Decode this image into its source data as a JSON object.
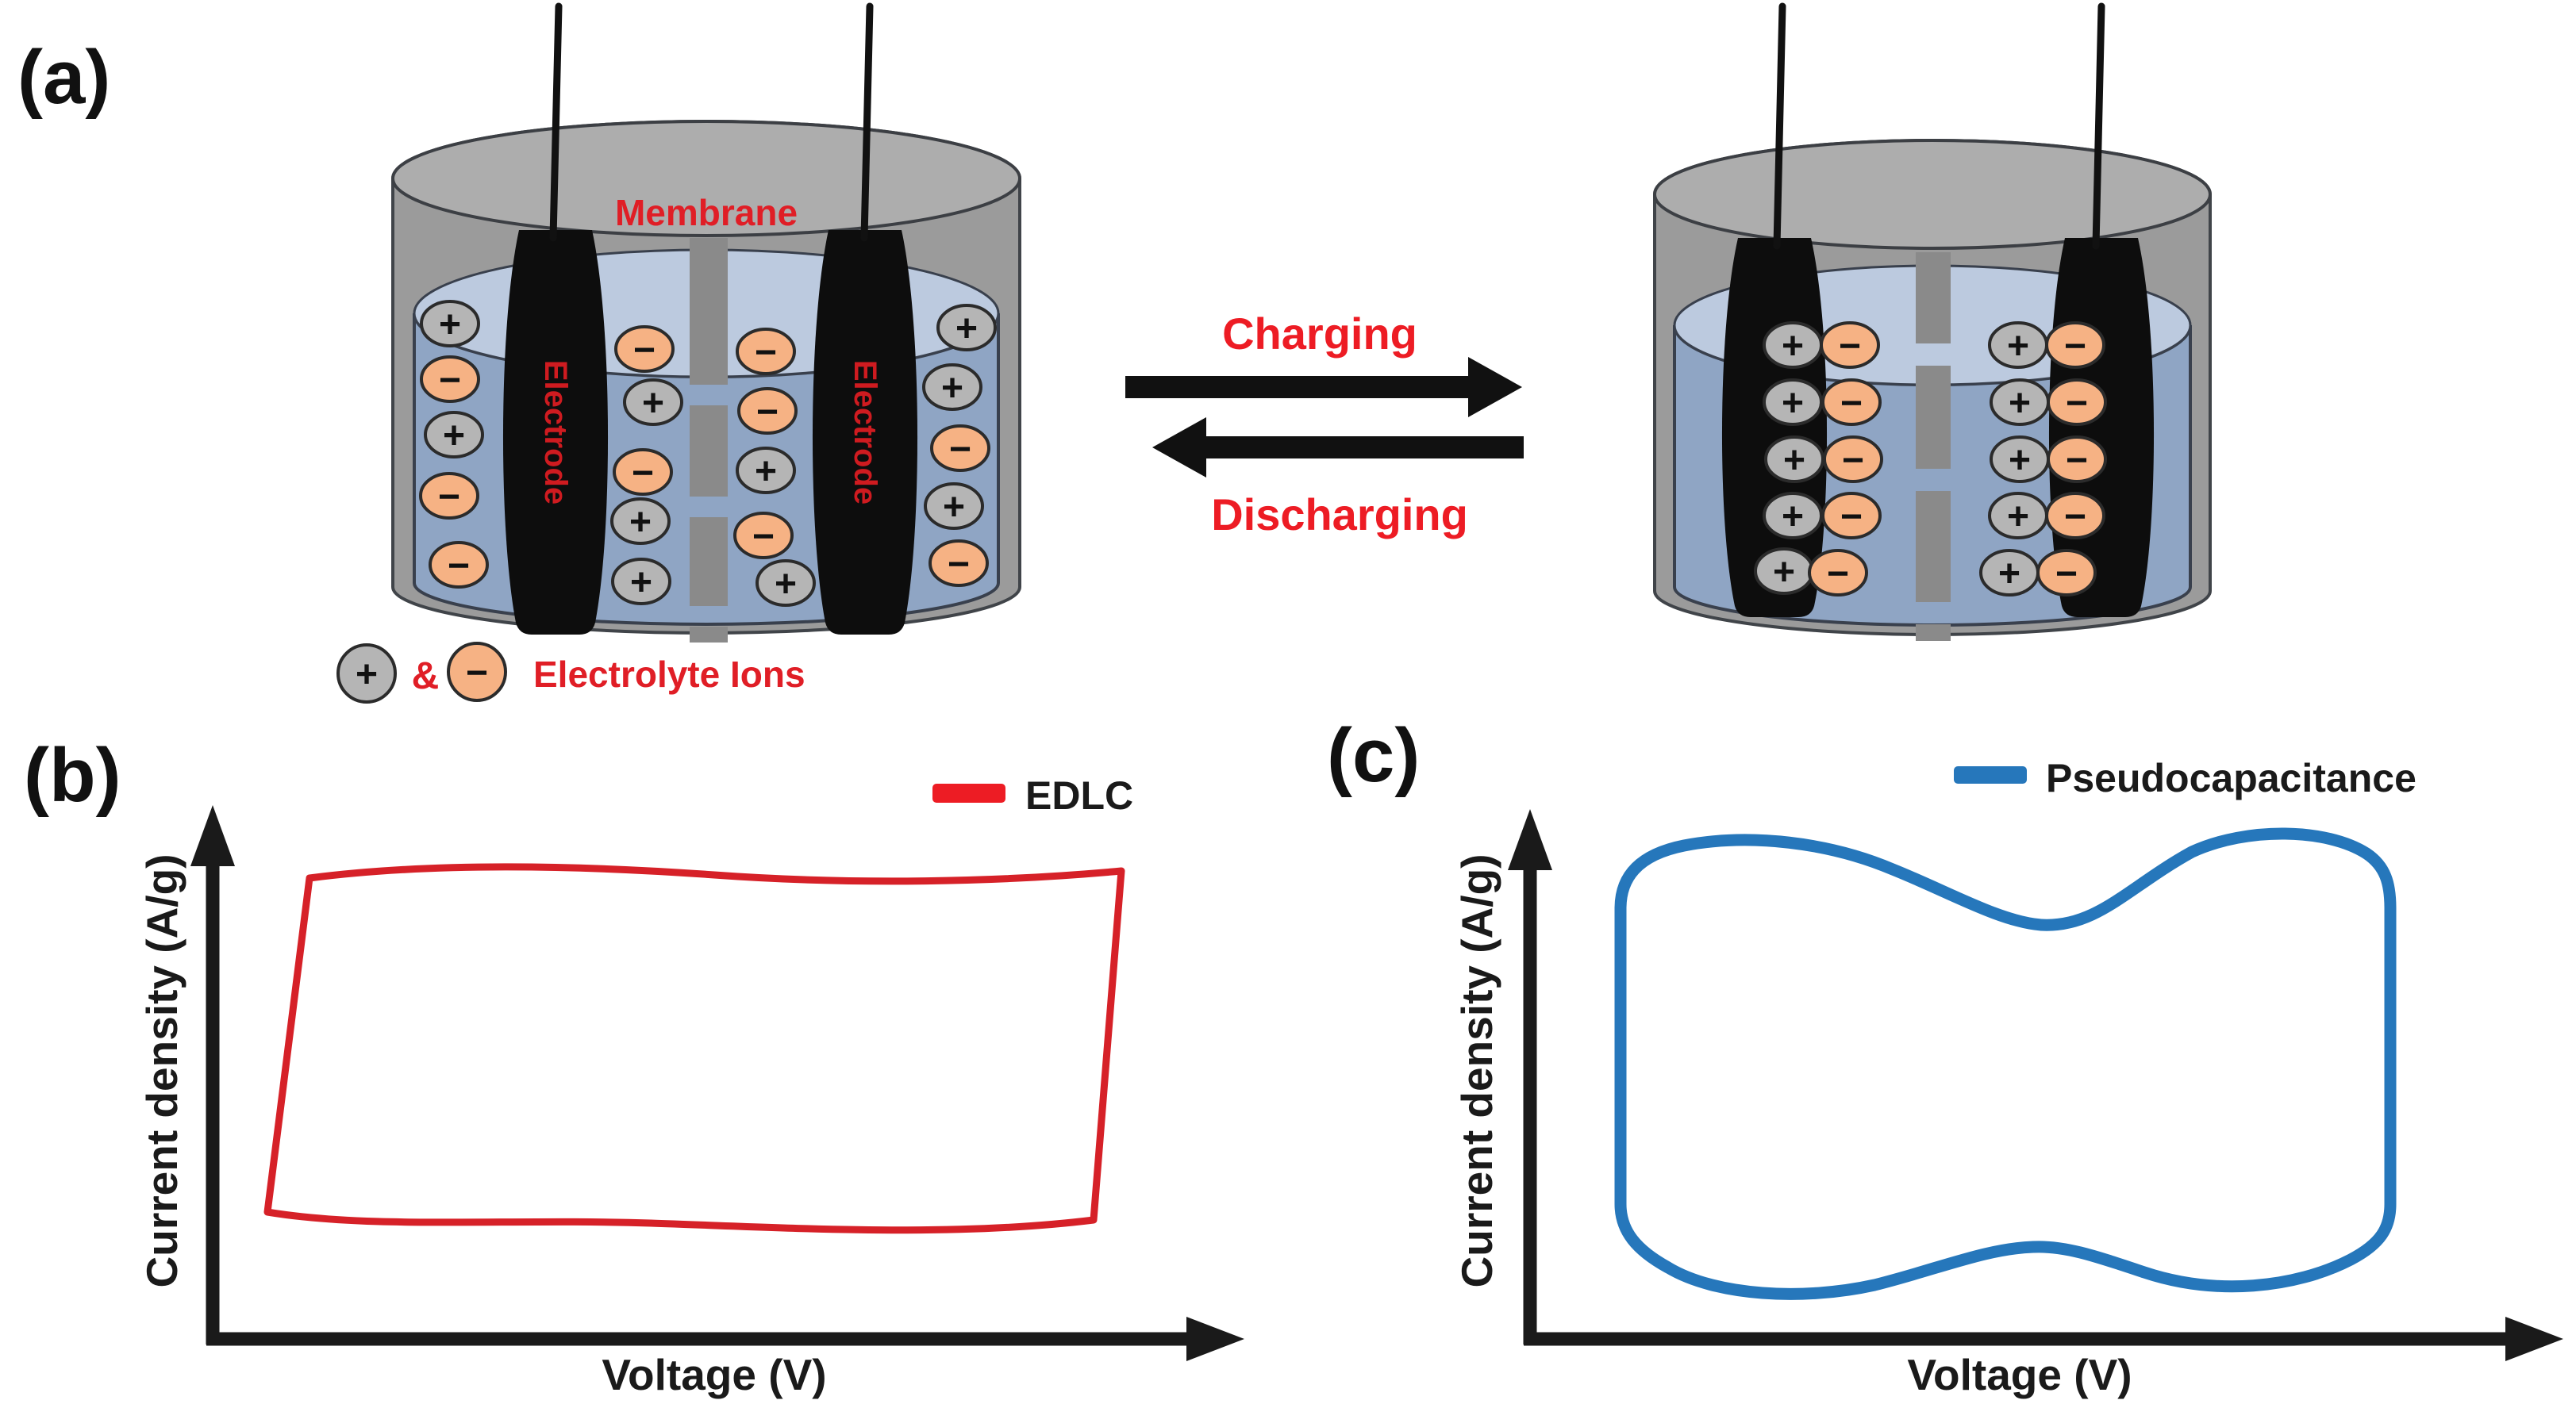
{
  "figure": {
    "panel_a": {
      "label": "(a)",
      "membrane_label": "Membrane",
      "electrode_label": "Electrode",
      "charging_label": "Charging",
      "discharging_label": "Discharging",
      "legend": {
        "plus_symbol": "+",
        "amp": "&",
        "minus_symbol": "−",
        "text": "Electrolyte Ions"
      },
      "symbols": {
        "p": "+",
        "m": "−"
      },
      "left_beaker_state": "discharged (ions dispersed in electrolyte)",
      "right_beaker_state": "charged (ion pairs adsorbed at both electrodes)",
      "left_beaker_ions": [
        [
          567,
          408,
          "p"
        ],
        [
          567,
          478,
          "m"
        ],
        [
          572,
          548,
          "p"
        ],
        [
          566,
          625,
          "m"
        ],
        [
          578,
          712,
          "m"
        ],
        [
          812,
          440,
          "m"
        ],
        [
          823,
          507,
          "p"
        ],
        [
          810,
          595,
          "m"
        ],
        [
          807,
          657,
          "p"
        ],
        [
          808,
          733,
          "p"
        ],
        [
          965,
          443,
          "m"
        ],
        [
          967,
          518,
          "m"
        ],
        [
          965,
          593,
          "p"
        ],
        [
          962,
          675,
          "m"
        ],
        [
          990,
          735,
          "p"
        ],
        [
          1218,
          413,
          "p"
        ],
        [
          1200,
          488,
          "p"
        ],
        [
          1210,
          565,
          "m"
        ],
        [
          1202,
          638,
          "p"
        ],
        [
          1208,
          710,
          "m"
        ]
      ],
      "right_beaker_ions": [
        [
          2259,
          435,
          "p"
        ],
        [
          2331,
          435,
          "m"
        ],
        [
          2259,
          507,
          "p"
        ],
        [
          2333,
          507,
          "m"
        ],
        [
          2261,
          579,
          "p"
        ],
        [
          2335,
          579,
          "m"
        ],
        [
          2259,
          650,
          "p"
        ],
        [
          2333,
          650,
          "m"
        ],
        [
          2248,
          720,
          "p"
        ],
        [
          2316,
          722,
          "m"
        ],
        [
          2543,
          435,
          "p"
        ],
        [
          2615,
          435,
          "m"
        ],
        [
          2545,
          507,
          "p"
        ],
        [
          2617,
          507,
          "m"
        ],
        [
          2545,
          579,
          "p"
        ],
        [
          2617,
          579,
          "m"
        ],
        [
          2543,
          650,
          "p"
        ],
        [
          2615,
          650,
          "m"
        ],
        [
          2532,
          722,
          "p"
        ],
        [
          2604,
          722,
          "m"
        ]
      ]
    },
    "panel_b": {
      "label": "(b)",
      "legend": "EDLC",
      "ylabel": "Current density (A/g)",
      "xlabel": "Voltage (V)"
    },
    "panel_c": {
      "label": "(c)",
      "legend": "Pseudocapacitance",
      "ylabel": "Current density (A/g)",
      "xlabel": "Voltage (V)"
    },
    "colors": {
      "red": "#e01e26",
      "loop-red": "#d62128",
      "loop-blue": "#2677bb",
      "ion-gray": "#b5b5b5",
      "ion-orange": "#f6b284",
      "liquid": "#8fa5c4",
      "surface": "#bccadf",
      "lid": "#adadad",
      "wall": "#9b9b9b",
      "membrane": "#8a8a8a",
      "electrode": "#0d0d0d",
      "ink": "#1a1a1a"
    }
  },
  "chart_data": [
    {
      "type": "line",
      "title": "",
      "xlabel": "Voltage (V)",
      "ylabel": "Current density (A/g)",
      "legend": [
        "EDLC"
      ],
      "legend_position": "top-right",
      "gridlines": false,
      "ticks": false,
      "axis_numbers": false,
      "description": "Idealized quasi-rectangular cyclic-voltammetry loop of an electric double-layer capacitor",
      "series": [
        {
          "name": "EDLC",
          "color": "#d62128",
          "upper_branch_xy": [
            [
              0.0,
              0.97
            ],
            [
              0.2,
              1.0
            ],
            [
              0.4,
              0.98
            ],
            [
              0.6,
              0.94
            ],
            [
              0.8,
              0.95
            ],
            [
              1.0,
              0.99
            ]
          ],
          "lower_branch_xy": [
            [
              0.0,
              -0.99
            ],
            [
              0.2,
              -1.03
            ],
            [
              0.4,
              -1.0
            ],
            [
              0.6,
              -1.02
            ],
            [
              0.8,
              -1.01
            ],
            [
              1.0,
              -0.97
            ]
          ]
        }
      ],
      "xlim": [
        0,
        1
      ],
      "ylim": [
        -1.4,
        1.4
      ]
    },
    {
      "type": "line",
      "title": "",
      "xlabel": "Voltage (V)",
      "ylabel": "Current density (A/g)",
      "legend": [
        "Pseudocapacitance"
      ],
      "legend_position": "top-right",
      "gridlines": false,
      "ticks": false,
      "axis_numbers": false,
      "description": "Idealized wavy (redox-hump) cyclic-voltammetry loop of a pseudocapacitive electrode",
      "series": [
        {
          "name": "Pseudocapacitance",
          "color": "#2677bb",
          "upper_branch_xy": [
            [
              0.0,
              0.85
            ],
            [
              0.15,
              1.05
            ],
            [
              0.3,
              0.98
            ],
            [
              0.5,
              0.8
            ],
            [
              0.7,
              1.02
            ],
            [
              0.85,
              1.08
            ],
            [
              1.0,
              0.88
            ]
          ],
          "lower_branch_xy": [
            [
              0.0,
              -0.88
            ],
            [
              0.15,
              -1.08
            ],
            [
              0.3,
              -1.0
            ],
            [
              0.5,
              -0.82
            ],
            [
              0.7,
              -1.02
            ],
            [
              0.85,
              -1.06
            ],
            [
              1.0,
              -0.9
            ]
          ]
        }
      ],
      "xlim": [
        0,
        1
      ],
      "ylim": [
        -1.4,
        1.4
      ]
    }
  ]
}
